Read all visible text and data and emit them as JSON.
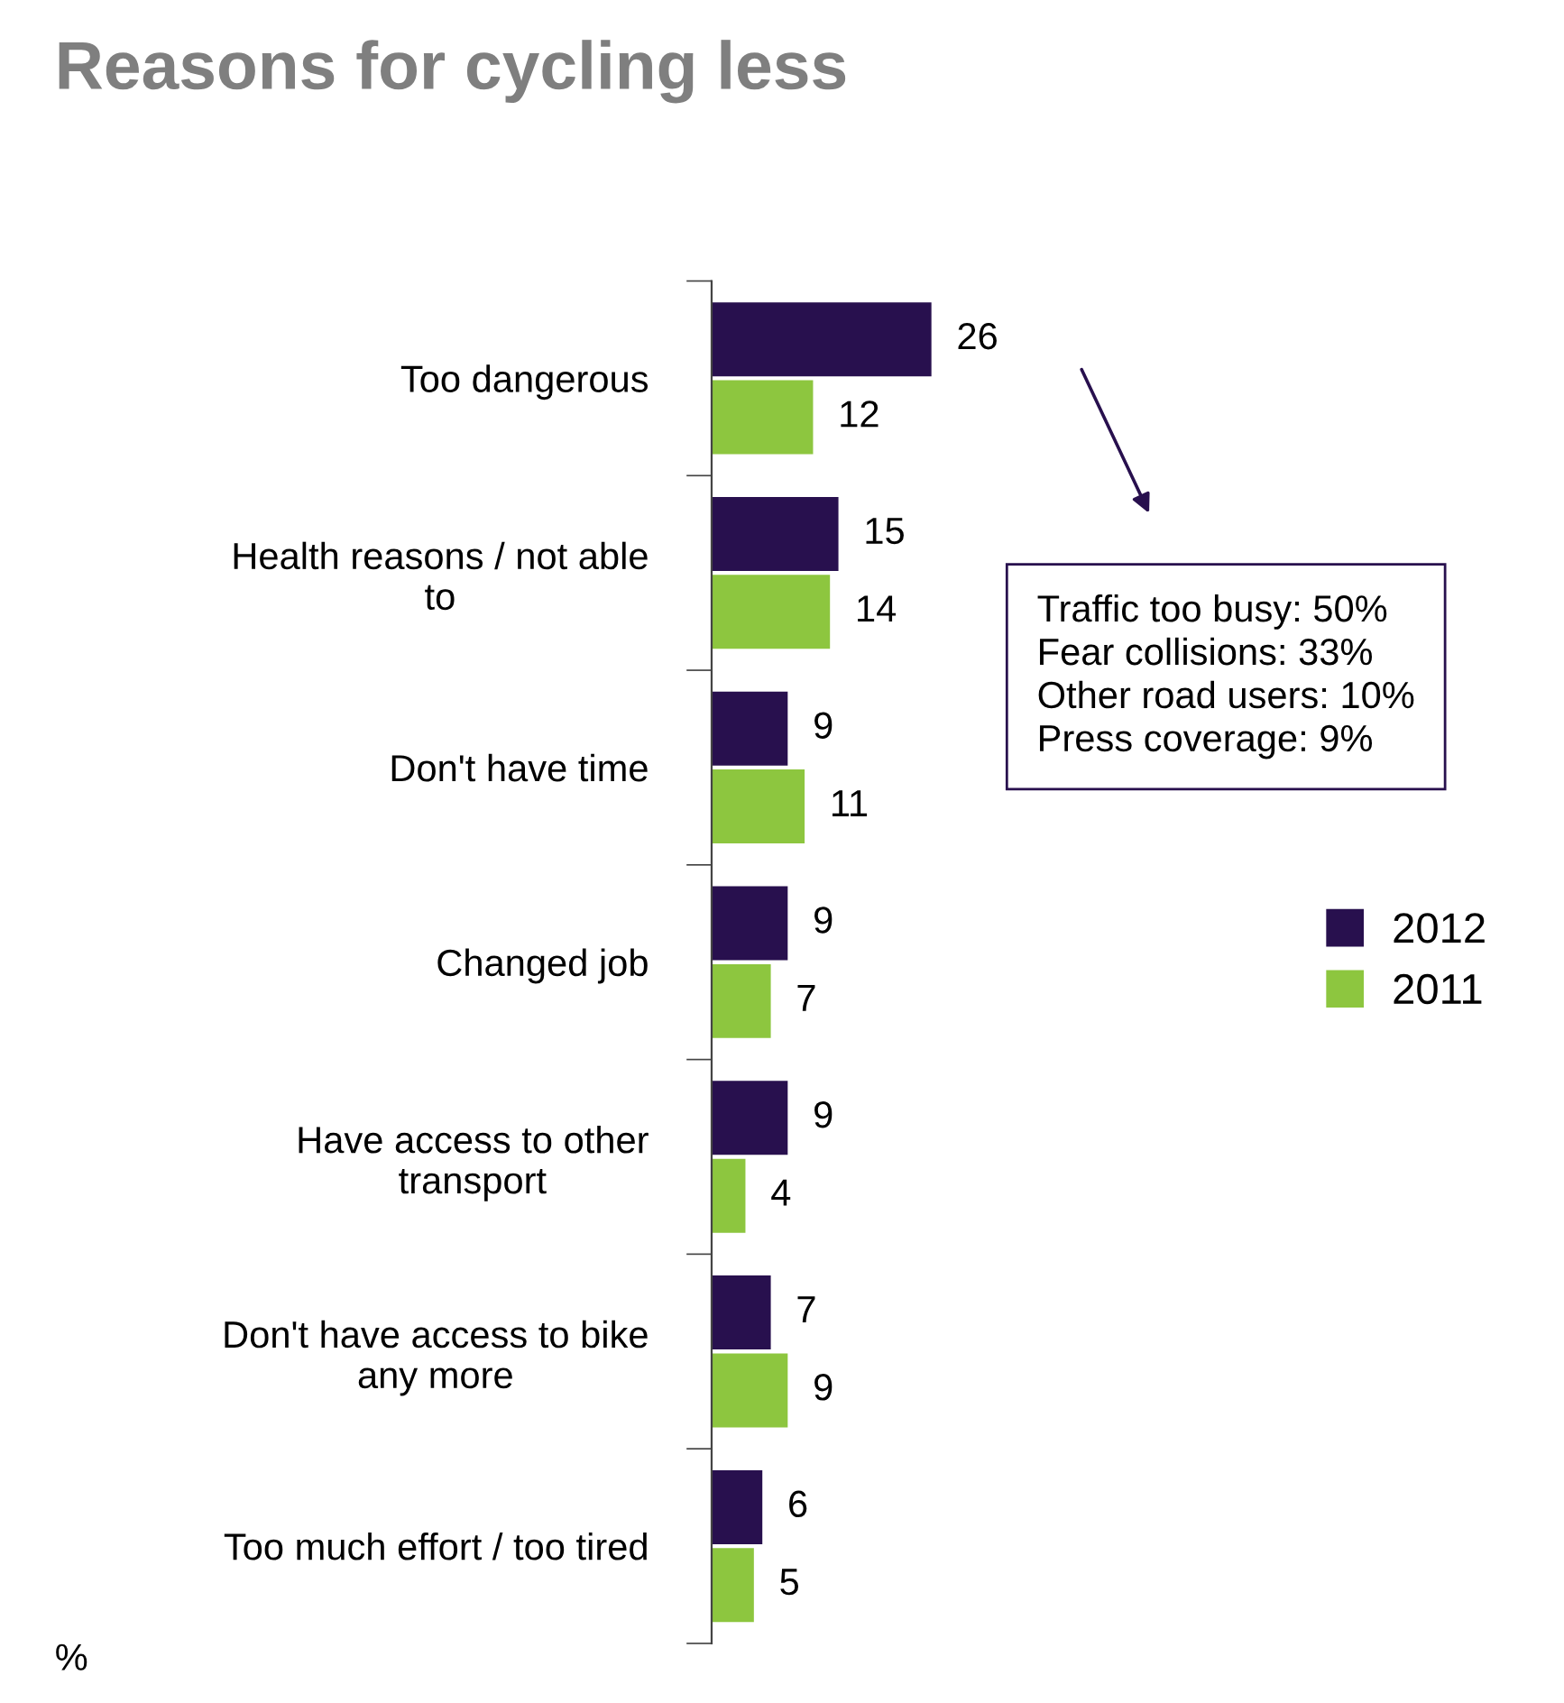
{
  "chart_data": {
    "type": "bar",
    "orientation": "horizontal",
    "title": "Reasons for cycling less",
    "xlabel": "%",
    "categories": [
      "Too dangerous",
      "Health reasons / not able\nto",
      "Don't have time",
      "Changed job",
      "Have access to other\ntransport",
      "Don't have access to bike\nany more",
      "Too much effort / too tired"
    ],
    "series": [
      {
        "name": "2012",
        "color": "#28104e",
        "values": [
          26,
          15,
          9,
          9,
          9,
          7,
          6
        ]
      },
      {
        "name": "2011",
        "color": "#8dc63f",
        "values": [
          12,
          14,
          11,
          7,
          4,
          9,
          5
        ]
      }
    ],
    "data_labels": true,
    "legend": "right",
    "grid": false,
    "annotations": [
      "Traffic too busy: 50%\nFear collisions: 33%\nOther road users: 10%\nPress coverage: 9%"
    ]
  }
}
